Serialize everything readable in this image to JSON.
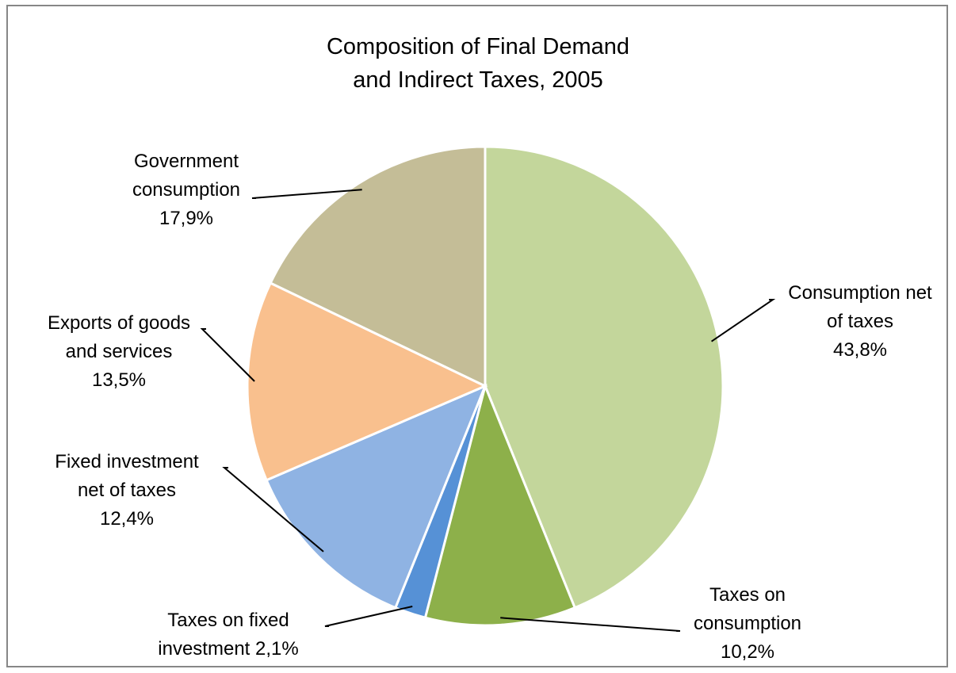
{
  "chart_data": {
    "type": "pie",
    "title_line1": "Composition of Final Demand",
    "title_line2": "and Indirect Taxes, 2005",
    "legend": "none",
    "slices": [
      {
        "name_line1": "Consumption net",
        "name_line2": "of taxes",
        "value": 43.8,
        "value_label": "43,8%",
        "color": "#c3d69b"
      },
      {
        "name_line1": "Taxes on",
        "name_line2": "consumption",
        "value": 10.2,
        "value_label": "10,2%",
        "color": "#8db04a"
      },
      {
        "name_line1": "Taxes on fixed",
        "name_line2": "investment",
        "value": 2.1,
        "value_label": "2,1%",
        "color": "#5691d6"
      },
      {
        "name_line1": "Fixed investment",
        "name_line2": "net of taxes",
        "value": 12.4,
        "value_label": "12,4%",
        "color": "#8fb3e3"
      },
      {
        "name_line1": "Exports of goods",
        "name_line2": "and services",
        "value": 13.5,
        "value_label": "13,5%",
        "color": "#f9c08e"
      },
      {
        "name_line1": "Government",
        "name_line2": "consumption",
        "value": 17.9,
        "value_label": "17,9%",
        "color": "#c4bd97"
      }
    ]
  }
}
